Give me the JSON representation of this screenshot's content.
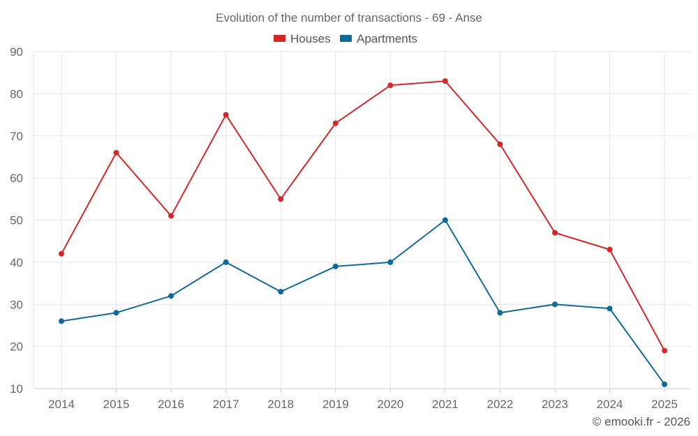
{
  "chart_data": {
    "type": "line",
    "title": "Evolution of the number of transactions - 69 - Anse",
    "categories": [
      "2014",
      "2015",
      "2016",
      "2017",
      "2018",
      "2019",
      "2020",
      "2021",
      "2022",
      "2023",
      "2024",
      "2025"
    ],
    "series": [
      {
        "name": "Houses",
        "color": "#d62728",
        "values": [
          42,
          66,
          51,
          75,
          55,
          73,
          82,
          83,
          68,
          47,
          43,
          19
        ]
      },
      {
        "name": "Apartments",
        "color": "#0f6a9c",
        "values": [
          26,
          28,
          32,
          40,
          33,
          39,
          40,
          50,
          28,
          30,
          29,
          11
        ]
      }
    ],
    "y_ticks": [
      "10",
      "20",
      "30",
      "40",
      "50",
      "60",
      "70",
      "80",
      "90"
    ],
    "ylim": [
      10,
      90
    ],
    "xlabel": "",
    "ylabel": "",
    "grid": true,
    "legend_position": "top-center"
  },
  "footer": {
    "credit": "© emooki.fr - 2026"
  }
}
